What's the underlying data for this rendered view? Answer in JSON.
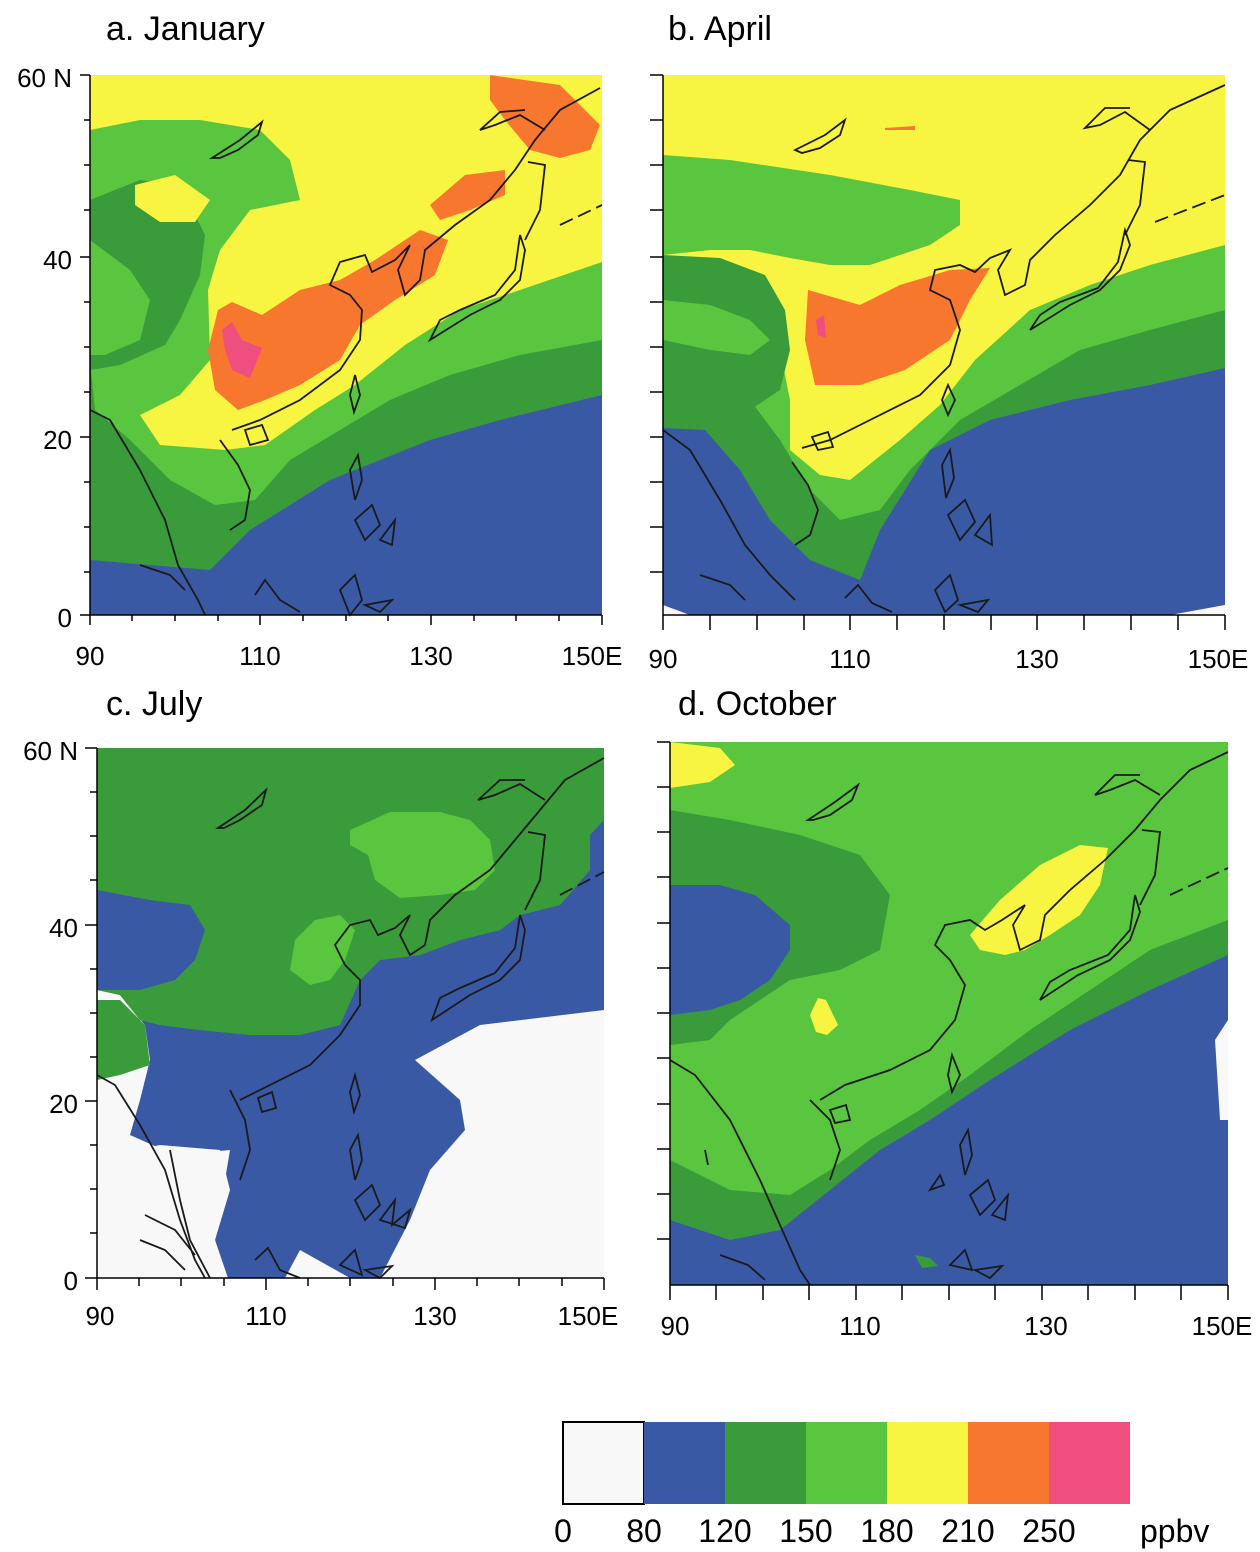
{
  "figure": {
    "legend": {
      "colors": [
        "#f7f8f7",
        "#3a59a5",
        "#3a9b3a",
        "#5ac53e",
        "#f8f542",
        "#f7772e",
        "#ef4f7e"
      ],
      "labels": [
        "0",
        "80",
        "120",
        "150",
        "180",
        "210",
        "250"
      ],
      "unit": "ppbv"
    },
    "axis_labels": {
      "y": [
        "0",
        "20",
        "40",
        "60 N"
      ],
      "x": [
        "90",
        "110",
        "130",
        "150E"
      ]
    },
    "panels": [
      {
        "title": "a. January",
        "x_ticks": [
          "90",
          "110",
          "130",
          "150E"
        ],
        "y_ticks": [
          "0",
          "20",
          "40",
          "60 N"
        ]
      },
      {
        "title": "b. April",
        "x_ticks": [
          "90",
          "110",
          "130",
          "150E"
        ],
        "y_ticks": []
      },
      {
        "title": "c. July",
        "x_ticks": [
          "90",
          "110",
          "130",
          "150E"
        ],
        "y_ticks": [
          "0",
          "20",
          "40",
          "60 N"
        ]
      },
      {
        "title": "d. October",
        "x_ticks": [
          "90",
          "110",
          "130",
          "150E"
        ],
        "y_ticks": []
      }
    ]
  }
}
